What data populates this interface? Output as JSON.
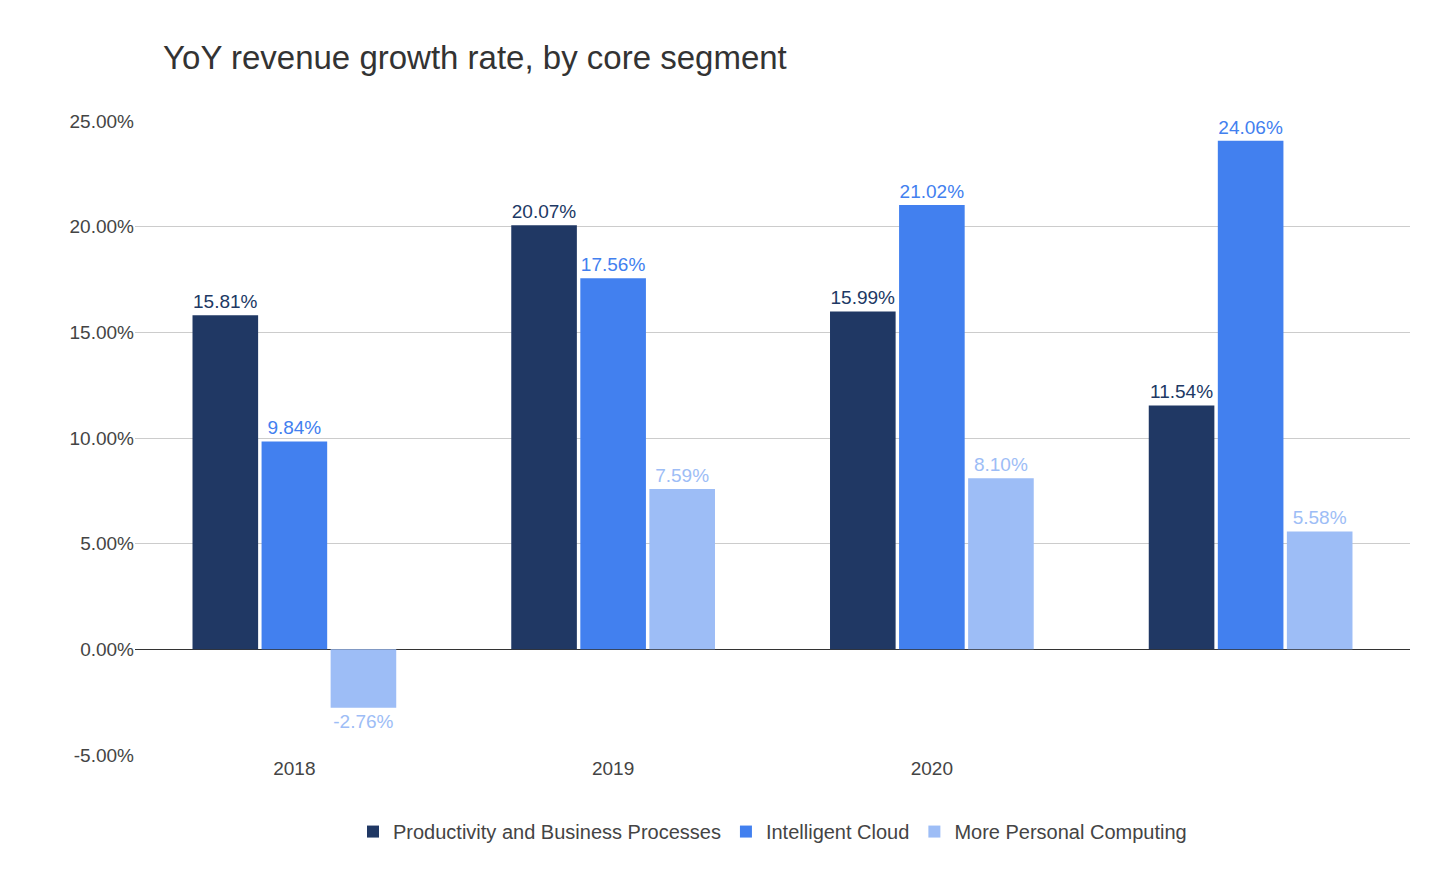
{
  "chart_data": {
    "type": "bar",
    "title": "YoY revenue growth rate, by core segment",
    "categories": [
      "2018",
      "2019",
      "2020",
      null
    ],
    "series": [
      {
        "name": "Productivity and Business Processes",
        "color": "#203864",
        "values": [
          15.81,
          20.07,
          15.99,
          11.54
        ],
        "value_labels": [
          "15.81%",
          "20.07%",
          "15.99%",
          "11.54%"
        ]
      },
      {
        "name": "Intelligent Cloud",
        "color": "#4280ef",
        "values": [
          9.84,
          17.56,
          21.02,
          24.06
        ],
        "value_labels": [
          "9.84%",
          "17.56%",
          "21.02%",
          "24.06%"
        ]
      },
      {
        "name": "More Personal Computing",
        "color": "#9dbdf6",
        "values": [
          -2.76,
          7.59,
          8.1,
          5.58
        ],
        "value_labels": [
          "-2.76%",
          "7.59%",
          "8.10%",
          "5.58%"
        ]
      }
    ],
    "ylim": [
      -5,
      25
    ],
    "yticks": [
      {
        "value": -5,
        "label": "-5.00%"
      },
      {
        "value": 0,
        "label": "0.00%"
      },
      {
        "value": 5,
        "label": "5.00%"
      },
      {
        "value": 10,
        "label": "10.00%"
      },
      {
        "value": 15,
        "label": "15.00%"
      },
      {
        "value": 20,
        "label": "20.00%"
      },
      {
        "value": 25,
        "label": "25.00%"
      }
    ],
    "grid": true,
    "legend": "bottom",
    "data_labels": true
  }
}
